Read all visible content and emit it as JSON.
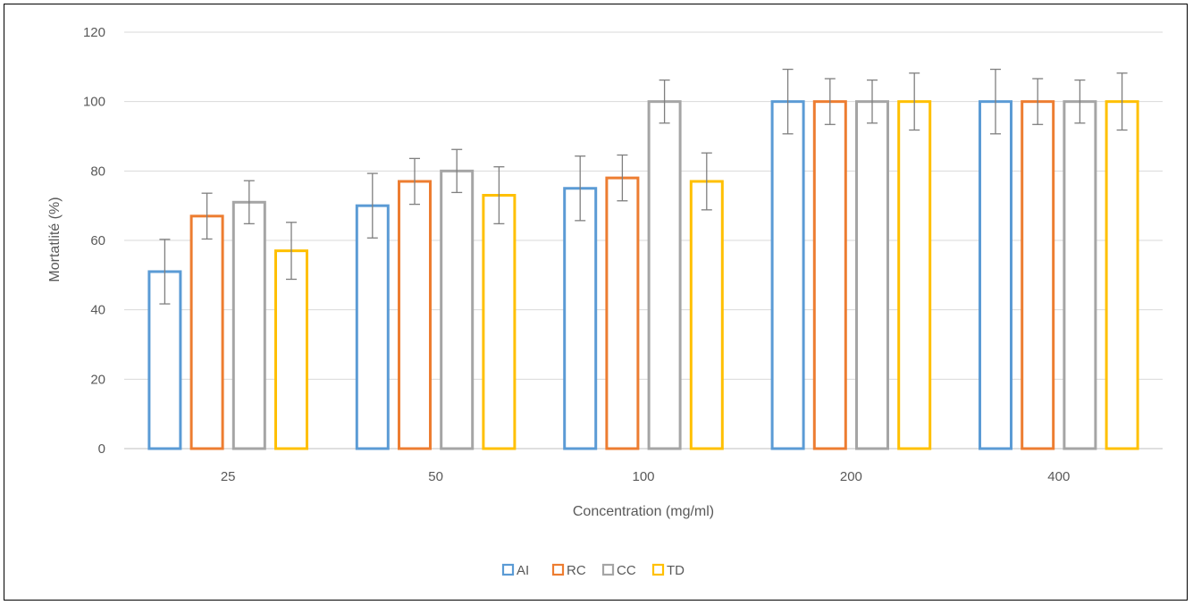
{
  "chart_data": {
    "type": "bar",
    "xlabel": "Concentration (mg/ml)",
    "ylabel": "Mortatlité (%)",
    "categories": [
      "25",
      "50",
      "100",
      "200",
      "400"
    ],
    "ylim": [
      0,
      120
    ],
    "yticks": [
      0,
      20,
      40,
      60,
      80,
      100,
      120
    ],
    "grid": true,
    "legend_position": "bottom",
    "series": [
      {
        "name": "AI",
        "color": "#5B9BD5",
        "values": [
          51,
          70,
          75,
          100,
          100
        ],
        "errors": [
          9.3,
          9.3,
          9.3,
          9.3,
          9.3
        ]
      },
      {
        "name": "RC",
        "color": "#ED7D31",
        "values": [
          67,
          77,
          78,
          100,
          100
        ],
        "errors": [
          6.6,
          6.6,
          6.6,
          6.6,
          6.6
        ]
      },
      {
        "name": "CC",
        "color": "#A5A5A5",
        "values": [
          71,
          80,
          100,
          100,
          100
        ],
        "errors": [
          6.2,
          6.2,
          6.2,
          6.2,
          6.2
        ]
      },
      {
        "name": "TD",
        "color": "#FFC000",
        "values": [
          57,
          73,
          77,
          100,
          100
        ],
        "errors": [
          8.2,
          8.2,
          8.2,
          8.2,
          8.2
        ]
      }
    ]
  }
}
